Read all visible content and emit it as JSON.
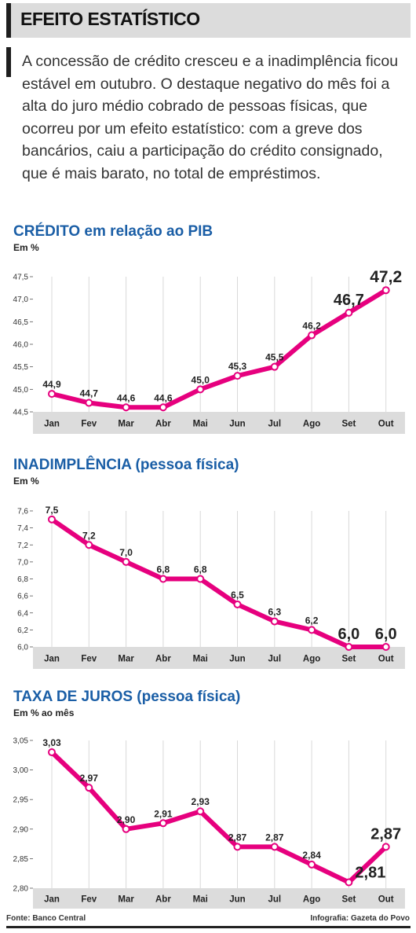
{
  "header": {
    "title": "EFEITO ESTATÍSTICO"
  },
  "intro": "A concessão de crédito cresceu e a inadimplência ficou estável em outubro. O destaque negativo do mês foi a alta do juro médio cobrado de pessoas físicas, que ocorreu por um efeito estatístico: com a greve dos bancários, caiu a participação do crédito consignado, que é mais barato, no total de empréstimos.",
  "colors": {
    "line": "#e6007e",
    "band": "#dcdcdc",
    "title": "#1a5ea6"
  },
  "footer": {
    "source": "Fonte: Banco Central",
    "credit": "Infografia: Gazeta do Povo"
  },
  "chart_data": [
    {
      "type": "line",
      "title": "CRÉDITO em relação ao PIB",
      "ylabel": "Em %",
      "categories": [
        "Jan",
        "Fev",
        "Mar",
        "Abr",
        "Mai",
        "Jun",
        "Jul",
        "Ago",
        "Set",
        "Out"
      ],
      "values": [
        44.9,
        44.7,
        44.6,
        44.6,
        45.0,
        45.3,
        45.5,
        46.2,
        46.7,
        47.2
      ],
      "value_labels": [
        "44,9",
        "44,7",
        "44,6",
        "44,6",
        "45,0",
        "45,3",
        "45,5",
        "46,2",
        "46,7",
        "47,2"
      ],
      "emphasized": [
        8,
        9
      ],
      "ylim": [
        44.5,
        47.5
      ],
      "yticks": [
        44.5,
        45.0,
        45.5,
        46.0,
        46.5,
        47.0,
        47.5
      ],
      "ytick_labels": [
        "44,5",
        "45,0",
        "45,5",
        "46,0",
        "46,5",
        "47,0",
        "47,5"
      ],
      "grid": "vertical"
    },
    {
      "type": "line",
      "title": "INADIMPLÊNCIA (pessoa física)",
      "ylabel": "Em %",
      "categories": [
        "Jan",
        "Fev",
        "Mar",
        "Abr",
        "Mai",
        "Jun",
        "Jul",
        "Ago",
        "Set",
        "Out"
      ],
      "values": [
        7.5,
        7.2,
        7.0,
        6.8,
        6.8,
        6.5,
        6.3,
        6.2,
        6.0,
        6.0
      ],
      "value_labels": [
        "7,5",
        "7,2",
        "7,0",
        "6,8",
        "6,8",
        "6,5",
        "6,3",
        "6,2",
        "6,0",
        "6,0"
      ],
      "emphasized": [
        8,
        9
      ],
      "ylim": [
        6.0,
        7.6
      ],
      "yticks": [
        6.0,
        6.2,
        6.4,
        6.6,
        6.8,
        7.0,
        7.2,
        7.4,
        7.6
      ],
      "ytick_labels": [
        "6,0",
        "6,2",
        "6,4",
        "6,6",
        "6,8",
        "7,0",
        "7,2",
        "7,4",
        "7,6"
      ],
      "grid": "vertical"
    },
    {
      "type": "line",
      "title": "TAXA DE JUROS (pessoa física)",
      "ylabel": "Em % ao mês",
      "categories": [
        "Jan",
        "Fev",
        "Mar",
        "Abr",
        "Mai",
        "Jun",
        "Jul",
        "Ago",
        "Set",
        "Out"
      ],
      "values": [
        3.03,
        2.97,
        2.9,
        2.91,
        2.93,
        2.87,
        2.87,
        2.84,
        2.81,
        2.87
      ],
      "value_labels": [
        "3,03",
        "2,97",
        "2,90",
        "2,91",
        "2,93",
        "2,87",
        "2,87",
        "2,84",
        "2,81",
        "2,87"
      ],
      "emphasized": [
        8,
        9
      ],
      "ylim": [
        2.8,
        3.05
      ],
      "yticks": [
        2.8,
        2.85,
        2.9,
        2.95,
        3.0,
        3.05
      ],
      "ytick_labels": [
        "2,80",
        "2,85",
        "2,90",
        "2,95",
        "3,00",
        "3,05"
      ],
      "grid": "vertical"
    }
  ]
}
